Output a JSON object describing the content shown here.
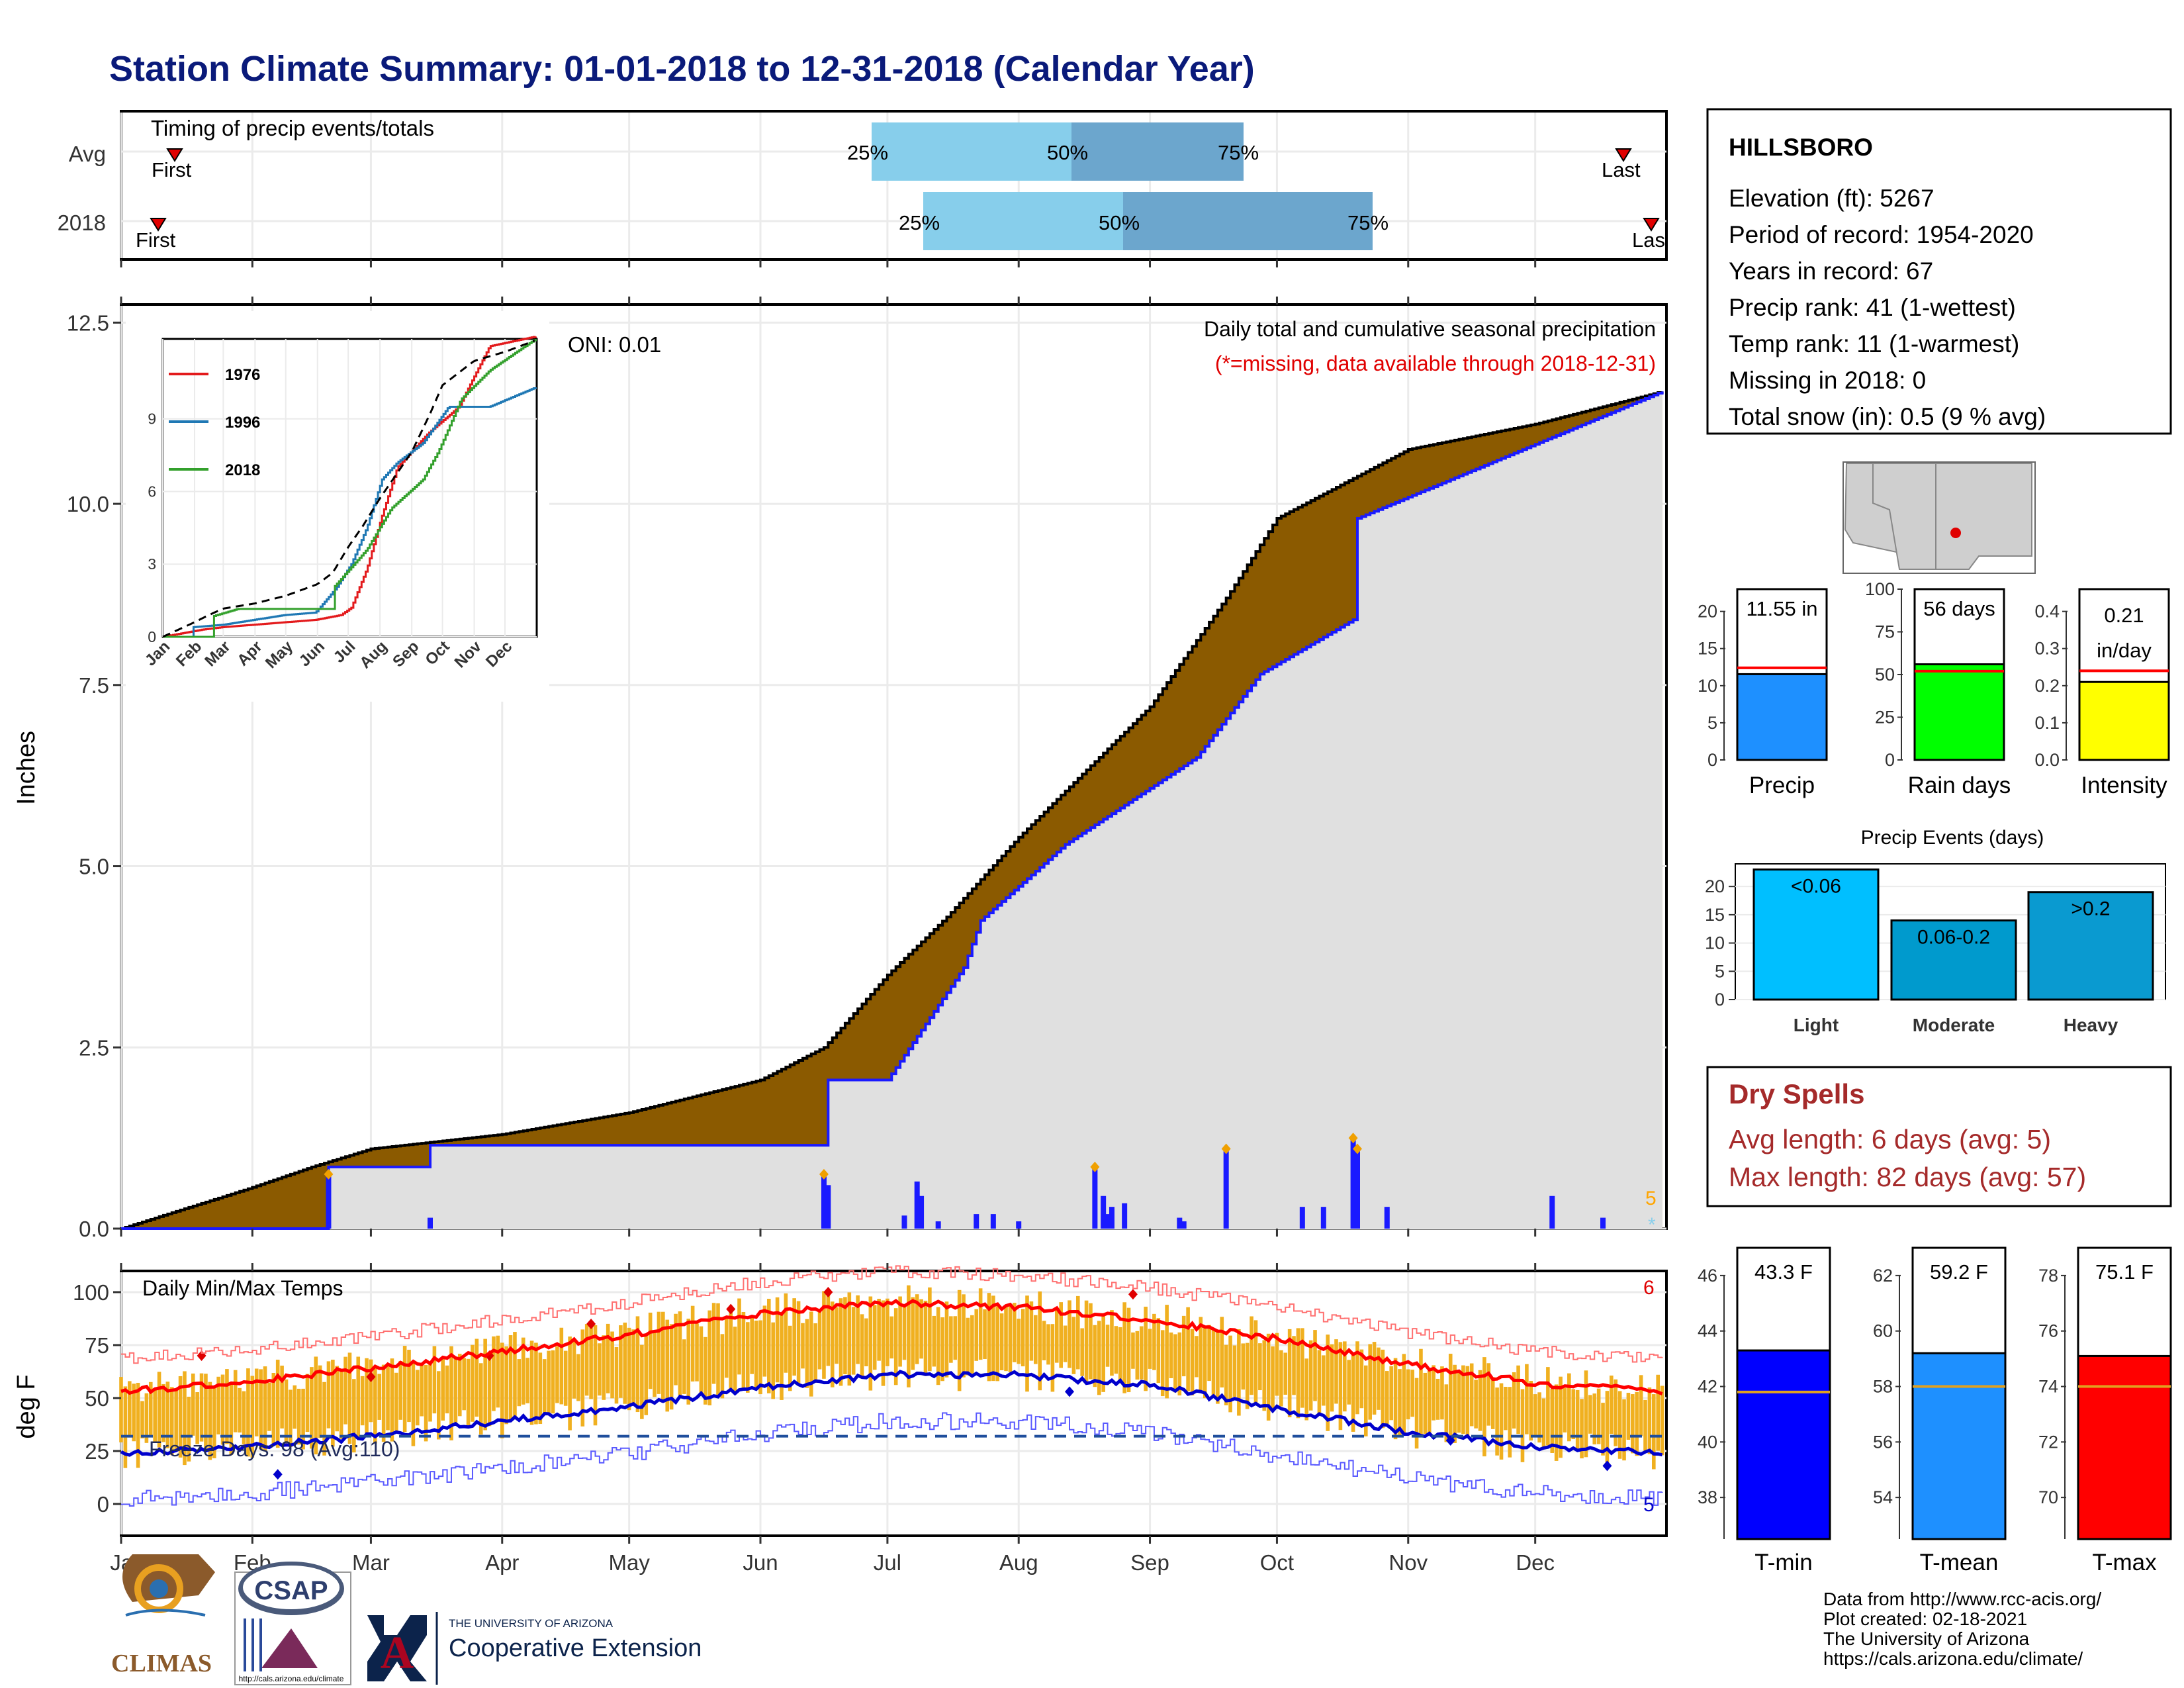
{
  "title": "Station Climate Summary: 01-01-2018 to 12-31-2018 (Calendar Year)",
  "colors": {
    "title": "#0a1a7a",
    "precip_fill": "#8b5a00",
    "precip_avg_fill": "#e0e0e0",
    "obs_line": "#1a1aff",
    "bar_blue": "#1a1aff",
    "temp_bar": "#f0b020",
    "tmax_line": "#ff0000",
    "tmin_line": "#0000cc",
    "dry_spell_text": "#a52a2a",
    "q_light": "#87ceeb",
    "q_dark": "#6ca6cd"
  },
  "timing": {
    "title": "Timing of precip events/totals",
    "rows": [
      {
        "label": "Avg",
        "first": "First",
        "last": "Last",
        "p25": "25%",
        "p50": "50%",
        "p75": "75%"
      },
      {
        "label": "2018",
        "first": "First",
        "last": "Last",
        "p25": "25%",
        "p50": "50%",
        "p75": "75%"
      }
    ]
  },
  "precip_panel": {
    "ylabel": "Inches",
    "yticks": [
      "0.0",
      "2.5",
      "5.0",
      "7.5",
      "10.0",
      "12.5"
    ],
    "oni": "ONI: 0.01",
    "subtitle1": "Daily total and cumulative seasonal precipitation",
    "subtitle2": "(*=missing, data available through 2018-12-31)",
    "missing_count": "5"
  },
  "inset": {
    "legend": [
      "1976",
      "1996",
      "2018"
    ],
    "legend_colors": [
      "#e31a1c",
      "#1f78b4",
      "#33a02c"
    ],
    "yticks": [
      "0",
      "3",
      "6",
      "9"
    ],
    "months": [
      "Jan",
      "Feb",
      "Mar",
      "Apr",
      "May",
      "Jun",
      "Jul",
      "Aug",
      "Sep",
      "Oct",
      "Nov",
      "Dec"
    ]
  },
  "temp_panel": {
    "ylabel": "deg F",
    "title": "Daily Min/Max Temps",
    "yticks": [
      "0",
      "25",
      "50",
      "75",
      "100"
    ],
    "freeze": "Freeze Days: 98 (Avg:110)",
    "count_hi": "6",
    "count_lo": "5"
  },
  "months": [
    "Jan",
    "Feb",
    "Mar",
    "Apr",
    "May",
    "Jun",
    "Jul",
    "Aug",
    "Sep",
    "Oct",
    "Nov",
    "Dec"
  ],
  "station": {
    "name": "HILLSBORO",
    "lines": [
      "Elevation (ft): 5267",
      "Period of record: 1954-2020",
      "Years in record: 67",
      "Precip rank: 41 (1-wettest)",
      "Temp rank: 11 (1-warmest)",
      "Missing in 2018: 0",
      "Total snow (in): 0.5 (9 % avg)"
    ]
  },
  "mini_bars": [
    {
      "label": "Precip",
      "value_text": "11.55 in",
      "value": 11.55,
      "avg": 12.4,
      "ymax": 23,
      "yticks": [
        "0",
        "5",
        "10",
        "15",
        "20"
      ],
      "tickvals": [
        0,
        5,
        10,
        15,
        20
      ],
      "color": "#1e90ff"
    },
    {
      "label": "Rain days",
      "value_text": "56 days",
      "value": 56,
      "avg": 52,
      "ymax": 100,
      "yticks": [
        "0",
        "25",
        "50",
        "75",
        "100"
      ],
      "tickvals": [
        0,
        25,
        50,
        75,
        100
      ],
      "color": "#00ff00"
    },
    {
      "label": "Intensity",
      "value_text": "0.21 in/day",
      "value": 0.21,
      "avg": 0.24,
      "ymax": 0.46,
      "yticks": [
        "0.0",
        "0.1",
        "0.2",
        "0.3",
        "0.4"
      ],
      "tickvals": [
        0,
        0.1,
        0.2,
        0.3,
        0.4
      ],
      "color": "#ffff00"
    }
  ],
  "events": {
    "title": "Precip Events (days)",
    "categories": [
      "Light",
      "Moderate",
      "Heavy"
    ],
    "bar_labels": [
      "<0.06",
      "0.06-0.2",
      ">0.2"
    ],
    "values": [
      23,
      14,
      19
    ],
    "yticks": [
      "0",
      "5",
      "10",
      "15",
      "20"
    ],
    "colors": [
      "#00bfff",
      "#009acd",
      "#0a9ad0"
    ]
  },
  "dry_spells": {
    "title": "Dry Spells",
    "avg": "Avg length: 6 days (avg: 5)",
    "max": "Max length: 82 days (avg: 57)"
  },
  "temp_bars": [
    {
      "label": "T-min",
      "value_text": "43.3 F",
      "value": 43.3,
      "avg": 41.8,
      "ymin": 36.5,
      "ymax": 47,
      "yticks": [
        "38",
        "40",
        "42",
        "44",
        "46"
      ],
      "tickvals": [
        38,
        40,
        42,
        44,
        46
      ],
      "color": "#0000ff"
    },
    {
      "label": "T-mean",
      "value_text": "59.2 F",
      "value": 59.2,
      "avg": 58.0,
      "ymin": 52.5,
      "ymax": 63,
      "yticks": [
        "54",
        "56",
        "58",
        "60",
        "62"
      ],
      "tickvals": [
        54,
        56,
        58,
        60,
        62
      ],
      "color": "#1e90ff"
    },
    {
      "label": "T-max",
      "value_text": "75.1 F",
      "value": 75.1,
      "avg": 74.0,
      "ymin": 68.5,
      "ymax": 79,
      "yticks": [
        "70",
        "72",
        "74",
        "76",
        "78"
      ],
      "tickvals": [
        70,
        72,
        74,
        76,
        78
      ],
      "color": "#ff0000"
    }
  ],
  "footer": {
    "lines": [
      "Data from http://www.rcc-acis.org/",
      "Plot created: 02-18-2021",
      "The University of Arizona",
      "https://cals.arizona.edu/climate/"
    ],
    "climas": "CLIMAS",
    "csap": "CSAP",
    "csap_url": "http://cals.arizona.edu/climate",
    "ua_small": "THE UNIVERSITY OF ARIZONA",
    "ua_big": "Cooperative Extension"
  },
  "chart_data": [
    {
      "type": "area",
      "title": "Daily total and cumulative seasonal precipitation",
      "ylabel": "Inches",
      "ylim": [
        0,
        12.5
      ],
      "x_unit": "day_of_year",
      "avg_cumulative": {
        "x": [
          1,
          31,
          46,
          60,
          91,
          121,
          152,
          167,
          182,
          196,
          213,
          244,
          262,
          274,
          305,
          335,
          365
        ],
        "y": [
          0,
          0.55,
          0.85,
          1.1,
          1.3,
          1.6,
          2.05,
          2.5,
          3.5,
          4.3,
          5.4,
          7.2,
          8.7,
          9.8,
          10.75,
          11.1,
          11.55
        ]
      },
      "obs_cumulative": {
        "x": [
          1,
          49,
          50,
          73,
          74,
          167,
          168,
          182,
          200,
          204,
          224,
          255,
          270,
          292,
          293,
          365
        ],
        "y": [
          0,
          0,
          0.85,
          0.85,
          1.15,
          1.15,
          2.05,
          2.05,
          3.6,
          4.25,
          5.3,
          6.5,
          7.65,
          8.4,
          9.8,
          11.55
        ]
      },
      "daily_bars": {
        "x": [
          50,
          74,
          167,
          168,
          186,
          189,
          190,
          194,
          203,
          207,
          213,
          231,
          233,
          234,
          235,
          238,
          251,
          252,
          262,
          280,
          285,
          292,
          293,
          300,
          339,
          351
        ],
        "y": [
          0.75,
          0.15,
          0.75,
          0.6,
          0.18,
          0.65,
          0.45,
          0.1,
          0.2,
          0.2,
          0.1,
          0.85,
          0.45,
          0.2,
          0.3,
          0.35,
          0.15,
          0.1,
          1.1,
          0.3,
          0.3,
          1.25,
          1.1,
          0.3,
          0.45,
          0.15
        ]
      }
    },
    {
      "type": "line",
      "title": "Daily Min/Max Temps",
      "ylabel": "deg F",
      "ylim": [
        -15,
        110
      ],
      "x_unit": "day_of_year",
      "series": [
        {
          "name": "T-max",
          "x": [
            1,
            31,
            60,
            91,
            121,
            152,
            182,
            213,
            244,
            274,
            305,
            335,
            365
          ],
          "y": [
            53,
            58,
            64,
            72,
            80,
            90,
            95,
            93,
            87,
            78,
            66,
            57,
            53
          ]
        },
        {
          "name": "T-min",
          "x": [
            1,
            31,
            60,
            91,
            121,
            152,
            182,
            213,
            244,
            274,
            305,
            335,
            365
          ],
          "y": [
            24,
            27,
            32,
            39,
            46,
            55,
            61,
            61,
            56,
            45,
            34,
            27,
            24
          ]
        }
      ],
      "freeze_line": 32
    }
  ]
}
